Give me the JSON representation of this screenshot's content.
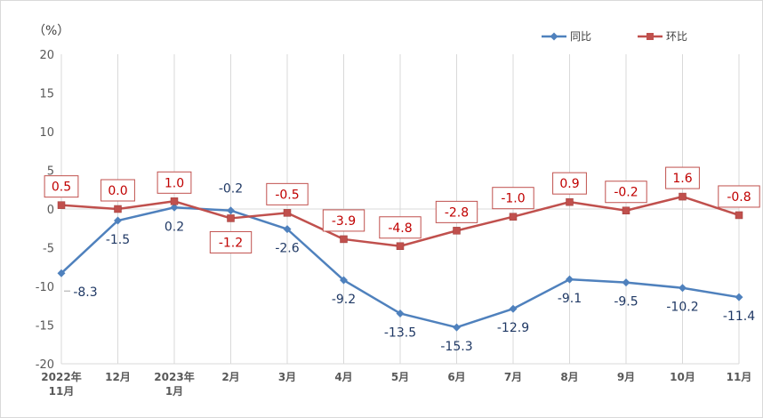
{
  "chart_data": {
    "type": "line",
    "unit_label": "（%）",
    "categories": [
      [
        "2022年",
        "11月"
      ],
      [
        "12月"
      ],
      [
        "2023年",
        "1月"
      ],
      [
        "2月"
      ],
      [
        "3月"
      ],
      [
        "4月"
      ],
      [
        "5月"
      ],
      [
        "6月"
      ],
      [
        "7月"
      ],
      [
        "8月"
      ],
      [
        "9月"
      ],
      [
        "10月"
      ],
      [
        "11月"
      ]
    ],
    "ylim": [
      -20,
      20
    ],
    "yticks": [
      20,
      15,
      10,
      5,
      0,
      -5,
      -10,
      -15,
      -20
    ],
    "grid": "vertical",
    "legend_position": "top-right",
    "series": [
      {
        "name": "同比",
        "color": "#4f81bd",
        "marker": "diamond",
        "values": [
          -8.3,
          -1.5,
          0.2,
          -0.2,
          -2.6,
          -9.2,
          -13.5,
          -15.3,
          -12.9,
          -9.1,
          -9.5,
          -10.2,
          -11.4
        ],
        "labels": [
          "-8.3",
          "-1.5",
          "0.2",
          "-0.2",
          "-2.6",
          "-9.2",
          "-13.5",
          "-15.3",
          "-12.9",
          "-9.1",
          "-9.5",
          "-10.2",
          "-11.4"
        ],
        "label_placement": [
          "below",
          "below",
          "below",
          "above",
          "below",
          "below",
          "below",
          "below",
          "below",
          "below",
          "below",
          "below",
          "below"
        ]
      },
      {
        "name": "环比",
        "color": "#c0504d",
        "marker": "square",
        "values": [
          0.5,
          0.0,
          1.0,
          -1.2,
          -0.5,
          -3.9,
          -4.8,
          -2.8,
          -1.0,
          0.9,
          -0.2,
          1.6,
          -0.8
        ],
        "labels": [
          "0.5",
          "0.0",
          "1.0",
          "-1.2",
          "-0.5",
          "-3.9",
          "-4.8",
          "-2.8",
          "-1.0",
          "0.9",
          "-0.2",
          "1.6",
          "-0.8"
        ],
        "label_placement": [
          "above",
          "above",
          "above",
          "below",
          "above",
          "above",
          "above",
          "above",
          "above",
          "above",
          "above",
          "above",
          "above"
        ]
      }
    ]
  }
}
